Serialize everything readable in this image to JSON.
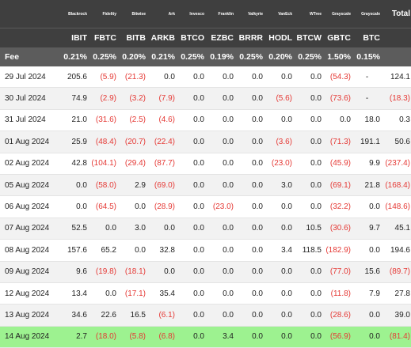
{
  "table": {
    "issuers": [
      "",
      "Blackrock",
      "Fidelity",
      "Bitwise",
      "Ark",
      "Invesco",
      "Franklin",
      "Valkyrie",
      "VanEck",
      "WTree",
      "Grayscale",
      "Grayscale",
      "Total"
    ],
    "tickers": [
      "",
      "IBIT",
      "FBTC",
      "BITB",
      "ARKB",
      "BTCO",
      "EZBC",
      "BRRR",
      "HODL",
      "BTCW",
      "GBTC",
      "BTC",
      ""
    ],
    "fee_label": "Fee",
    "fees": [
      "0.21%",
      "0.25%",
      "0.20%",
      "0.21%",
      "0.25%",
      "0.19%",
      "0.25%",
      "0.20%",
      "0.25%",
      "1.50%",
      "0.15%",
      ""
    ],
    "rows": [
      {
        "date": "29 Jul 2024",
        "values": [
          "205.6",
          "(5.9)",
          "(21.3)",
          "0.0",
          "0.0",
          "0.0",
          "0.0",
          "0.0",
          "0.0",
          "(54.3)",
          "-",
          "124.1"
        ]
      },
      {
        "date": "30 Jul 2024",
        "values": [
          "74.9",
          "(2.9)",
          "(3.2)",
          "(7.9)",
          "0.0",
          "0.0",
          "0.0",
          "(5.6)",
          "0.0",
          "(73.6)",
          "-",
          "(18.3)"
        ]
      },
      {
        "date": "31 Jul 2024",
        "values": [
          "21.0",
          "(31.6)",
          "(2.5)",
          "(4.6)",
          "0.0",
          "0.0",
          "0.0",
          "0.0",
          "0.0",
          "0.0",
          "18.0",
          "0.3"
        ]
      },
      {
        "date": "01 Aug 2024",
        "values": [
          "25.9",
          "(48.4)",
          "(20.7)",
          "(22.4)",
          "0.0",
          "0.0",
          "0.0",
          "(3.6)",
          "0.0",
          "(71.3)",
          "191.1",
          "50.6"
        ]
      },
      {
        "date": "02 Aug 2024",
        "values": [
          "42.8",
          "(104.1)",
          "(29.4)",
          "(87.7)",
          "0.0",
          "0.0",
          "0.0",
          "(23.0)",
          "0.0",
          "(45.9)",
          "9.9",
          "(237.4)"
        ]
      },
      {
        "date": "05 Aug 2024",
        "values": [
          "0.0",
          "(58.0)",
          "2.9",
          "(69.0)",
          "0.0",
          "0.0",
          "0.0",
          "3.0",
          "0.0",
          "(69.1)",
          "21.8",
          "(168.4)"
        ]
      },
      {
        "date": "06 Aug 2024",
        "values": [
          "0.0",
          "(64.5)",
          "0.0",
          "(28.9)",
          "0.0",
          "(23.0)",
          "0.0",
          "0.0",
          "0.0",
          "(32.2)",
          "0.0",
          "(148.6)"
        ]
      },
      {
        "date": "07 Aug 2024",
        "values": [
          "52.5",
          "0.0",
          "3.0",
          "0.0",
          "0.0",
          "0.0",
          "0.0",
          "0.0",
          "10.5",
          "(30.6)",
          "9.7",
          "45.1"
        ]
      },
      {
        "date": "08 Aug 2024",
        "values": [
          "157.6",
          "65.2",
          "0.0",
          "32.8",
          "0.0",
          "0.0",
          "0.0",
          "3.4",
          "118.5",
          "(182.9)",
          "0.0",
          "194.6"
        ]
      },
      {
        "date": "09 Aug 2024",
        "values": [
          "9.6",
          "(19.8)",
          "(18.1)",
          "0.0",
          "0.0",
          "0.0",
          "0.0",
          "0.0",
          "0.0",
          "(77.0)",
          "15.6",
          "(89.7)"
        ]
      },
      {
        "date": "12 Aug 2024",
        "values": [
          "13.4",
          "0.0",
          "(17.1)",
          "35.4",
          "0.0",
          "0.0",
          "0.0",
          "0.0",
          "0.0",
          "(11.8)",
          "7.9",
          "27.8"
        ]
      },
      {
        "date": "13 Aug 2024",
        "values": [
          "34.6",
          "22.6",
          "16.5",
          "(6.1)",
          "0.0",
          "0.0",
          "0.0",
          "0.0",
          "0.0",
          "(28.6)",
          "0.0",
          "39.0"
        ]
      },
      {
        "date": "14 Aug 2024",
        "values": [
          "2.7",
          "(18.0)",
          "(5.8)",
          "(6.8)",
          "0.0",
          "3.4",
          "0.0",
          "0.0",
          "0.0",
          "(56.9)",
          "0.0",
          "(81.4)"
        ]
      }
    ],
    "highlight_row": "14 Aug 2024",
    "colors": {
      "header_bg": "#3f3f3f",
      "fee_bg": "#5c5c5c",
      "negative": "#e53935",
      "highlight": "#9df290"
    }
  }
}
